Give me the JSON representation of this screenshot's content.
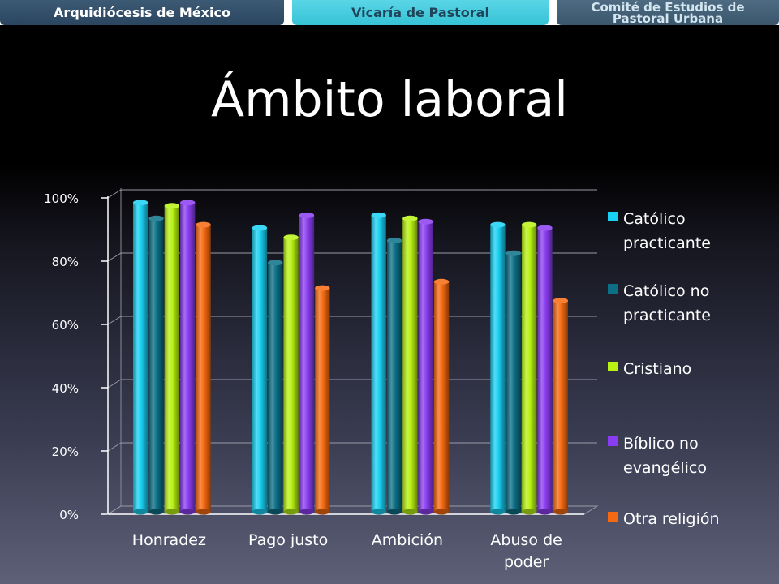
{
  "header": {
    "tab1": "Arquidiócesis de México",
    "tab2": "Vicaría de Pastoral",
    "tab3_line1": "Comité de Estudios de",
    "tab3_line2": "Pastoral Urbana"
  },
  "slide": {
    "title": "Ámbito laboral"
  },
  "chart_data": {
    "type": "bar",
    "categories": [
      "Honradez",
      "Pago justo",
      "Ambición",
      "Abuso de poder"
    ],
    "series": [
      {
        "name": "Católico practicante",
        "color": "#1ad0f2",
        "values": [
          98,
          90,
          94,
          91
        ]
      },
      {
        "name": "Católico no practicante",
        "color": "#0c6f86",
        "values": [
          93,
          79,
          86,
          82
        ]
      },
      {
        "name": "Cristiano",
        "color": "#b8f212",
        "values": [
          97,
          87,
          93,
          91
        ]
      },
      {
        "name": "Bíblico no evangélico",
        "color": "#8a3df0",
        "values": [
          98,
          94,
          92,
          90
        ]
      },
      {
        "name": "Otra religión",
        "color": "#f56a10",
        "values": [
          91,
          71,
          73,
          67
        ]
      }
    ],
    "ylim": [
      0,
      100
    ],
    "yticks": [
      "0%",
      "20%",
      "40%",
      "60%",
      "80%",
      "100%"
    ],
    "grid": true,
    "legend": "right",
    "style": "3d-cylinder"
  }
}
